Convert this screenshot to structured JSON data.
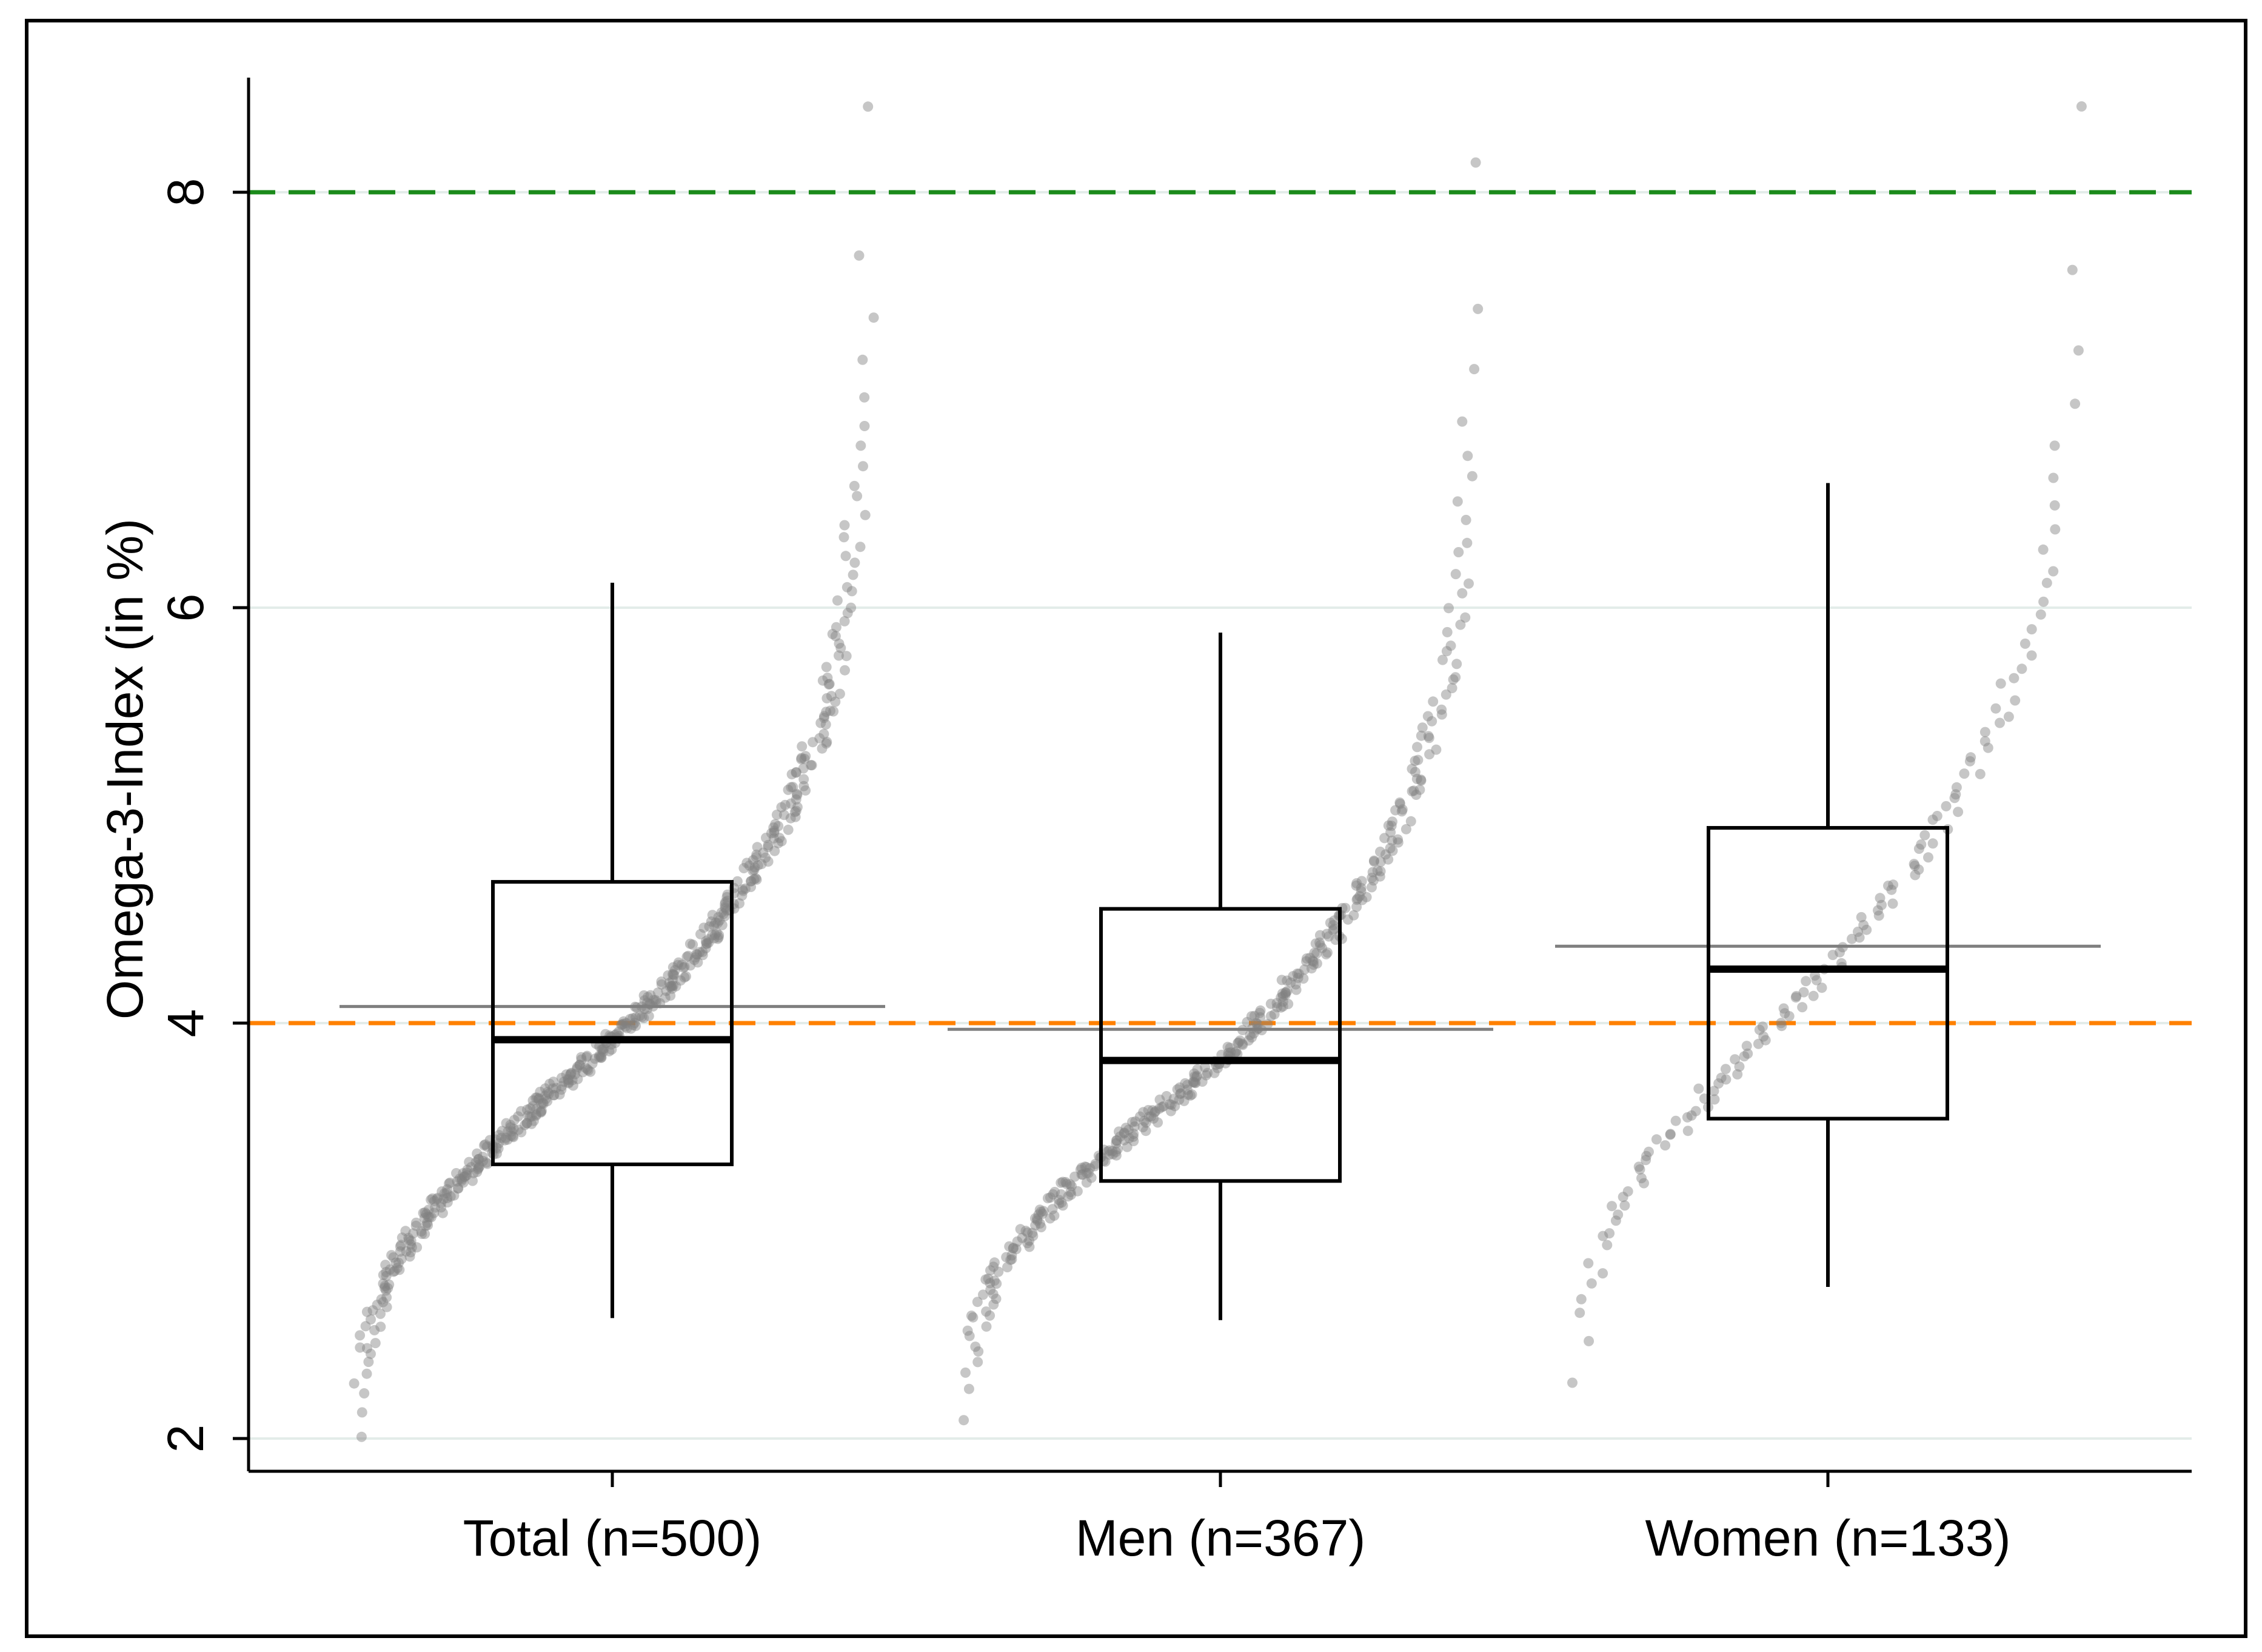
{
  "chart_data": {
    "type": "box",
    "title": "",
    "xlabel": "",
    "ylabel": "Omega-3-Index (in %)",
    "ylim": [
      1.83,
      8.55
    ],
    "yticks": [
      2,
      4,
      6,
      8
    ],
    "ytick_labels": [
      "2",
      "4",
      "6",
      "8"
    ],
    "grid_y": true,
    "colors": {
      "box": "#000000",
      "points": "#808080",
      "mean_line": "#7f7f7f",
      "ref_high": "#1a8a1a",
      "ref_low": "#ff8000",
      "grid": "#e3ece9"
    },
    "reference_lines": [
      {
        "y": 8,
        "color": "#1a8a1a",
        "style": "dashed"
      },
      {
        "y": 4,
        "color": "#ff8000",
        "style": "dashed"
      }
    ],
    "categories": [
      "Total (n=500)",
      "Men (n=367)",
      "Women (n=133)"
    ],
    "boxes": [
      {
        "category": "Total (n=500)",
        "whisker_low": 2.58,
        "q1": 3.32,
        "median": 3.92,
        "q3": 4.68,
        "whisker_high": 6.12,
        "mean": 4.08,
        "n": 500,
        "min": 2.0,
        "max": 8.4
      },
      {
        "category": "Men (n=367)",
        "whisker_low": 2.57,
        "q1": 3.24,
        "median": 3.82,
        "q3": 4.55,
        "whisker_high": 5.88,
        "mean": 3.97,
        "n": 367,
        "min": 2.1,
        "max": 8.15
      },
      {
        "category": "Women (n=133)",
        "whisker_low": 2.73,
        "q1": 3.54,
        "median": 4.26,
        "q3": 4.94,
        "whisker_high": 6.6,
        "mean": 4.37,
        "n": 133,
        "min": 2.25,
        "max": 8.4
      }
    ]
  }
}
